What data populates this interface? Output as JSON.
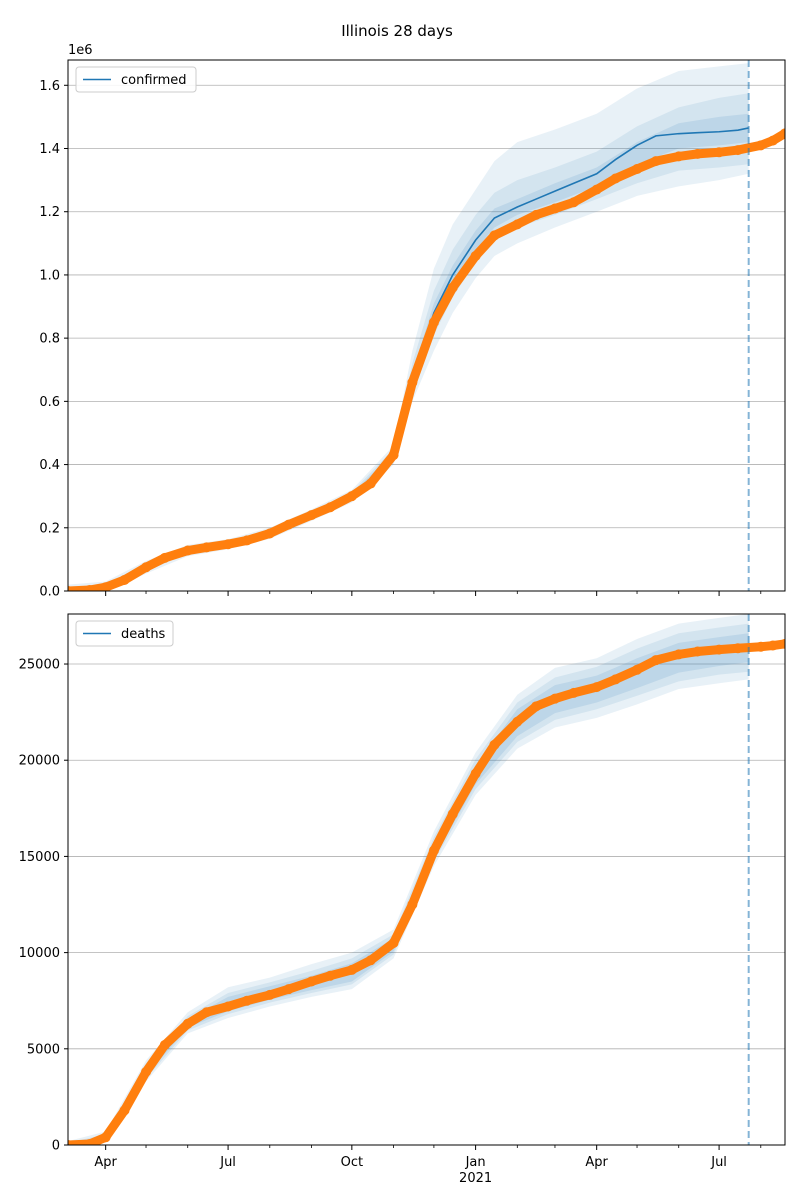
{
  "title": "Illinois 28 days",
  "colors": {
    "model": "#1f77b4",
    "observed": "#ff7f0e",
    "band": "#1f77b4",
    "grid": "#b0b0b0",
    "cutoff": "#1f77b4"
  },
  "x_axis": {
    "ticks": [
      {
        "date": "2020-04-01",
        "label": "Apr"
      },
      {
        "date": "2020-07-01",
        "label": "Jul"
      },
      {
        "date": "2020-10-01",
        "label": "Oct"
      },
      {
        "date": "2021-01-01",
        "label": "Jan"
      },
      {
        "date": "2021-04-01",
        "label": "Apr"
      },
      {
        "date": "2021-07-01",
        "label": "Jul"
      }
    ],
    "year_label": "2021",
    "minor_ticks": [
      "2020-05-01",
      "2020-06-01",
      "2020-08-01",
      "2020-09-01",
      "2020-11-01",
      "2020-12-01",
      "2021-02-01",
      "2021-03-01",
      "2021-05-01",
      "2021-06-01",
      "2021-08-01"
    ],
    "xlim": [
      "2020-03-04",
      "2021-08-19"
    ]
  },
  "chart_data": [
    {
      "type": "line",
      "name": "confirmed",
      "legend_label": "confirmed",
      "offset_label": "1e6",
      "ylim": [
        0,
        1.68
      ],
      "yticks": [
        0.0,
        0.2,
        0.4,
        0.6,
        0.8,
        1.0,
        1.2,
        1.4,
        1.6
      ],
      "ytick_labels": [
        "0.0",
        "0.2",
        "0.4",
        "0.6",
        "0.8",
        "1.0",
        "1.2",
        "1.4",
        "1.6"
      ],
      "grid": "horizontal",
      "legend_position": "upper-left",
      "cutoff_date": "2021-07-23",
      "observed": {
        "x": [
          "2020-03-04",
          "2020-03-20",
          "2020-04-01",
          "2020-04-15",
          "2020-05-01",
          "2020-05-15",
          "2020-06-01",
          "2020-06-15",
          "2020-07-01",
          "2020-07-15",
          "2020-08-01",
          "2020-08-15",
          "2020-09-01",
          "2020-09-15",
          "2020-10-01",
          "2020-10-15",
          "2020-11-01",
          "2020-11-15",
          "2020-12-01",
          "2020-12-15",
          "2021-01-01",
          "2021-01-15",
          "2021-02-01",
          "2021-02-15",
          "2021-03-01",
          "2021-03-15",
          "2021-04-01",
          "2021-04-15",
          "2021-05-01",
          "2021-05-15",
          "2021-06-01",
          "2021-06-15",
          "2021-07-01",
          "2021-07-15",
          "2021-08-01",
          "2021-08-10",
          "2021-08-19"
        ],
        "y": [
          0.0,
          0.003,
          0.012,
          0.035,
          0.075,
          0.105,
          0.128,
          0.138,
          0.148,
          0.16,
          0.182,
          0.21,
          0.24,
          0.265,
          0.3,
          0.34,
          0.43,
          0.66,
          0.85,
          0.96,
          1.06,
          1.125,
          1.16,
          1.19,
          1.21,
          1.23,
          1.27,
          1.305,
          1.335,
          1.36,
          1.375,
          1.383,
          1.388,
          1.395,
          1.41,
          1.425,
          1.448
        ]
      },
      "model": {
        "x": [
          "2020-03-04",
          "2020-03-20",
          "2020-04-01",
          "2020-04-15",
          "2020-05-01",
          "2020-05-15",
          "2020-06-01",
          "2020-06-15",
          "2020-07-01",
          "2020-07-15",
          "2020-08-01",
          "2020-08-15",
          "2020-09-01",
          "2020-09-15",
          "2020-10-01",
          "2020-10-15",
          "2020-11-01",
          "2020-11-15",
          "2020-12-01",
          "2020-12-15",
          "2021-01-01",
          "2021-01-15",
          "2021-02-01",
          "2021-02-15",
          "2021-03-01",
          "2021-03-15",
          "2021-04-01",
          "2021-04-15",
          "2021-05-01",
          "2021-05-15",
          "2021-06-01",
          "2021-06-15",
          "2021-07-01",
          "2021-07-15",
          "2021-07-23"
        ],
        "y": [
          0.0,
          0.003,
          0.012,
          0.035,
          0.075,
          0.105,
          0.128,
          0.138,
          0.148,
          0.16,
          0.182,
          0.21,
          0.24,
          0.265,
          0.3,
          0.34,
          0.43,
          0.67,
          0.88,
          1.0,
          1.11,
          1.18,
          1.215,
          1.24,
          1.265,
          1.29,
          1.32,
          1.365,
          1.41,
          1.44,
          1.447,
          1.45,
          1.453,
          1.458,
          1.465
        ]
      },
      "bands": {
        "x": [
          "2020-03-04",
          "2020-04-01",
          "2020-05-01",
          "2020-06-01",
          "2020-07-01",
          "2020-08-01",
          "2020-09-01",
          "2020-10-01",
          "2020-11-01",
          "2020-11-15",
          "2020-12-01",
          "2020-12-15",
          "2021-01-01",
          "2021-01-15",
          "2021-02-01",
          "2021-03-01",
          "2021-04-01",
          "2021-05-01",
          "2021-06-01",
          "2021-07-01",
          "2021-07-23"
        ],
        "outer_low": [
          -0.02,
          -0.005,
          0.055,
          0.11,
          0.132,
          0.165,
          0.222,
          0.28,
          0.4,
          0.6,
          0.76,
          0.88,
          0.99,
          1.06,
          1.1,
          1.15,
          1.2,
          1.25,
          1.28,
          1.3,
          1.32
        ],
        "outer_high": [
          0.02,
          0.03,
          0.095,
          0.146,
          0.164,
          0.2,
          0.258,
          0.32,
          0.46,
          0.76,
          1.02,
          1.16,
          1.27,
          1.36,
          1.42,
          1.46,
          1.51,
          1.59,
          1.645,
          1.66,
          1.67
        ],
        "mid_low": [
          -0.01,
          0.003,
          0.063,
          0.118,
          0.139,
          0.172,
          0.23,
          0.288,
          0.41,
          0.63,
          0.81,
          0.93,
          1.04,
          1.11,
          1.15,
          1.19,
          1.24,
          1.29,
          1.33,
          1.34,
          1.35
        ],
        "mid_high": [
          0.01,
          0.022,
          0.087,
          0.138,
          0.157,
          0.192,
          0.25,
          0.312,
          0.45,
          0.72,
          0.95,
          1.08,
          1.19,
          1.26,
          1.3,
          1.34,
          1.39,
          1.47,
          1.53,
          1.56,
          1.575
        ],
        "inner_low": [
          -0.005,
          0.008,
          0.069,
          0.123,
          0.143,
          0.177,
          0.235,
          0.294,
          0.42,
          0.65,
          0.85,
          0.97,
          1.08,
          1.15,
          1.19,
          1.23,
          1.28,
          1.35,
          1.4,
          1.41,
          1.42
        ],
        "inner_high": [
          0.005,
          0.017,
          0.081,
          0.133,
          0.153,
          0.187,
          0.245,
          0.306,
          0.44,
          0.69,
          0.91,
          1.03,
          1.14,
          1.21,
          1.24,
          1.29,
          1.34,
          1.42,
          1.48,
          1.5,
          1.51
        ]
      }
    },
    {
      "type": "line",
      "name": "deaths",
      "legend_label": "deaths",
      "ylim": [
        0,
        27600
      ],
      "yticks": [
        0,
        5000,
        10000,
        15000,
        20000,
        25000
      ],
      "ytick_labels": [
        "0",
        "5000",
        "10000",
        "15000",
        "20000",
        "25000"
      ],
      "grid": "horizontal",
      "legend_position": "upper-left",
      "cutoff_date": "2021-07-23",
      "observed": {
        "x": [
          "2020-03-04",
          "2020-03-20",
          "2020-04-01",
          "2020-04-15",
          "2020-05-01",
          "2020-05-15",
          "2020-06-01",
          "2020-06-15",
          "2020-07-01",
          "2020-07-15",
          "2020-08-01",
          "2020-08-15",
          "2020-09-01",
          "2020-09-15",
          "2020-10-01",
          "2020-10-15",
          "2020-11-01",
          "2020-11-15",
          "2020-12-01",
          "2020-12-15",
          "2021-01-01",
          "2021-01-15",
          "2021-02-01",
          "2021-02-15",
          "2021-03-01",
          "2021-03-15",
          "2021-04-01",
          "2021-04-15",
          "2021-05-01",
          "2021-05-15",
          "2021-06-01",
          "2021-06-15",
          "2021-07-01",
          "2021-07-15",
          "2021-08-01",
          "2021-08-10",
          "2021-08-19"
        ],
        "y": [
          0,
          50,
          400,
          1800,
          3800,
          5200,
          6300,
          6900,
          7200,
          7500,
          7800,
          8100,
          8500,
          8800,
          9100,
          9600,
          10500,
          12500,
          15300,
          17200,
          19300,
          20800,
          22000,
          22800,
          23200,
          23500,
          23800,
          24200,
          24700,
          25200,
          25500,
          25650,
          25750,
          25820,
          25900,
          25960,
          26050
        ]
      },
      "bands": {
        "x": [
          "2020-03-04",
          "2020-04-01",
          "2020-05-01",
          "2020-06-01",
          "2020-07-01",
          "2020-08-01",
          "2020-09-01",
          "2020-10-01",
          "2020-11-01",
          "2020-12-01",
          "2021-01-01",
          "2021-02-01",
          "2021-03-01",
          "2021-04-01",
          "2021-05-01",
          "2021-06-01",
          "2021-07-01",
          "2021-07-23"
        ],
        "outer_low": [
          -200,
          200,
          3300,
          5800,
          6600,
          7200,
          7700,
          8100,
          9700,
          14500,
          18200,
          20600,
          21700,
          22200,
          22900,
          23700,
          24000,
          24200
        ],
        "outer_high": [
          200,
          700,
          4400,
          6900,
          8200,
          8700,
          9400,
          10000,
          11200,
          16300,
          20400,
          23400,
          24800,
          25300,
          26300,
          27100,
          27400,
          27600
        ],
        "mid_low": [
          -120,
          280,
          3450,
          5950,
          6800,
          7400,
          7900,
          8350,
          9900,
          14750,
          18500,
          20950,
          22100,
          22650,
          23350,
          24100,
          24450,
          24600
        ],
        "mid_high": [
          120,
          560,
          4250,
          6700,
          7900,
          8450,
          9050,
          9700,
          10950,
          16000,
          20050,
          23000,
          24300,
          24850,
          25800,
          26600,
          26900,
          27100
        ],
        "inner_low": [
          -60,
          330,
          3600,
          6100,
          6950,
          7550,
          8050,
          8500,
          10050,
          14900,
          18750,
          21250,
          22450,
          23000,
          23750,
          24550,
          24900,
          25100
        ],
        "inner_high": [
          60,
          470,
          4100,
          6550,
          7700,
          8250,
          8800,
          9450,
          10750,
          15800,
          19750,
          22650,
          23900,
          24400,
          25300,
          26100,
          26400,
          26600
        ]
      }
    }
  ],
  "legends": [
    "confirmed",
    "deaths"
  ]
}
